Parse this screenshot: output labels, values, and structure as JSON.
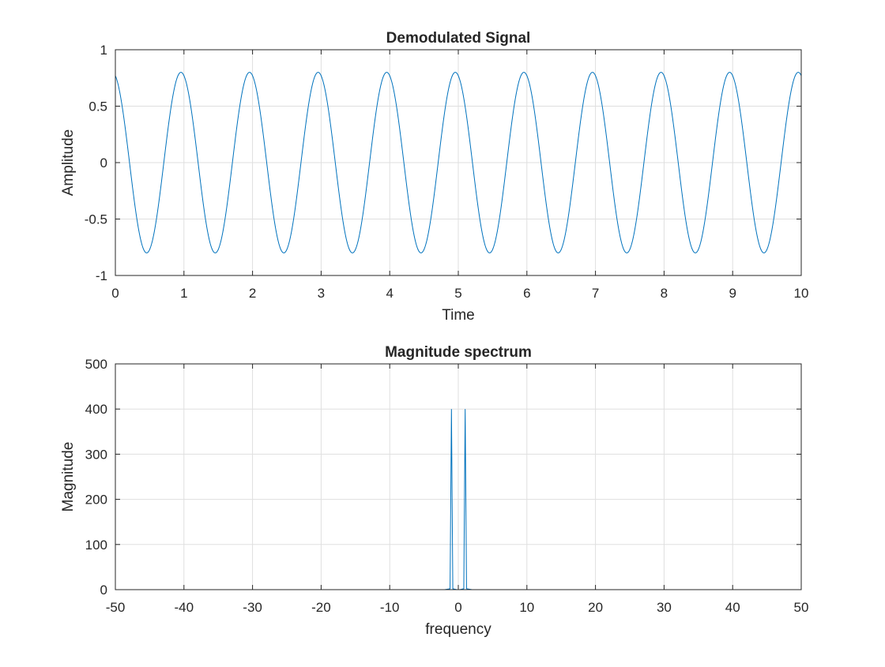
{
  "chart_data": [
    {
      "type": "line",
      "title": "Demodulated Signal",
      "xlabel": "Time",
      "ylabel": "Amplitude",
      "xlim": [
        0,
        10
      ],
      "ylim": [
        -1,
        1
      ],
      "xticks": [
        "0",
        "1",
        "2",
        "3",
        "4",
        "5",
        "6",
        "7",
        "8",
        "9",
        "10"
      ],
      "yticks": [
        "-1",
        "-0.5",
        "0",
        "0.5",
        "1"
      ],
      "grid": true,
      "series": [
        {
          "color": "#0072BD",
          "x": [
            0,
            0.5,
            1,
            1.5,
            2,
            2.5,
            3,
            3.5,
            4,
            4.5,
            5,
            5.5,
            6,
            6.5,
            7,
            7.5,
            8,
            8.5,
            9,
            9.5,
            10
          ],
          "y": [
            0.77,
            -0.8,
            0.8,
            -0.8,
            0.8,
            -0.8,
            0.8,
            -0.8,
            0.8,
            -0.8,
            0.8,
            -0.8,
            0.8,
            -0.8,
            0.8,
            -0.8,
            0.8,
            -0.8,
            0.8,
            -0.8,
            0.77
          ],
          "shape": "sinusoid",
          "amplitude": 0.8,
          "frequency": 1
        }
      ]
    },
    {
      "type": "line",
      "title": "Magnitude spectrum",
      "xlabel": "frequency",
      "ylabel": "Magnitude",
      "xlim": [
        -50,
        50
      ],
      "ylim": [
        0,
        500
      ],
      "xticks": [
        "-50",
        "-40",
        "-30",
        "-20",
        "-10",
        "0",
        "10",
        "20",
        "30",
        "40",
        "50"
      ],
      "yticks": [
        "0",
        "100",
        "200",
        "300",
        "400",
        "500"
      ],
      "grid": true,
      "series": [
        {
          "color": "#0072BD",
          "x": [
            -50,
            -2,
            -1.2,
            -1,
            -0.8,
            -0.2,
            0,
            0.2,
            0.8,
            1,
            1.2,
            2,
            50
          ],
          "y": [
            0,
            0,
            2,
            400,
            2,
            0,
            0,
            0,
            2,
            400,
            2,
            0,
            0
          ]
        }
      ]
    }
  ]
}
